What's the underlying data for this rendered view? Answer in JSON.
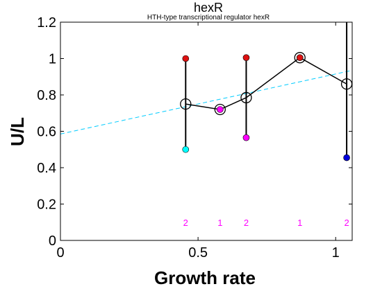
{
  "chart_data": {
    "type": "scatter",
    "title": "hexR",
    "subtitle": "HTH-type transcriptional regulator hexR",
    "xlabel": "Growth rate",
    "ylabel": "U/L",
    "xlim": [
      0,
      1.06
    ],
    "ylim": [
      0,
      1.2
    ],
    "xticks": [
      {
        "value": 0,
        "label": "0"
      },
      {
        "value": 0.5,
        "label": "0.5"
      },
      {
        "value": 1,
        "label": "1"
      }
    ],
    "yticks": [
      {
        "value": 0,
        "label": "0"
      },
      {
        "value": 0.2,
        "label": "0.2"
      },
      {
        "value": 0.4,
        "label": "0.4"
      },
      {
        "value": 0.6,
        "label": "0.6"
      },
      {
        "value": 0.8,
        "label": "0.8"
      },
      {
        "value": 1,
        "label": "1"
      },
      {
        "value": 1.2,
        "label": "1.2"
      }
    ],
    "grid": false,
    "trend_line": {
      "x": [
        0,
        1.06
      ],
      "y": [
        0.585,
        0.935
      ],
      "color": "#00ccff",
      "style": "dashed"
    },
    "mean_series": {
      "color": "#000000",
      "points": [
        {
          "x": 0.455,
          "y": 0.75
        },
        {
          "x": 0.58,
          "y": 0.72
        },
        {
          "x": 0.675,
          "y": 0.785
        },
        {
          "x": 0.87,
          "y": 1.005
        },
        {
          "x": 1.04,
          "y": 0.86
        }
      ]
    },
    "error_bars": [
      {
        "x": 0.455,
        "low": 0.5,
        "high": 1.0
      },
      {
        "x": 0.675,
        "low": 0.565,
        "high": 1.005
      },
      {
        "x": 1.04,
        "low": 0.455,
        "high": 1.2
      }
    ],
    "samples": [
      {
        "x": 0.455,
        "y": 1.0,
        "color": "#dd1111"
      },
      {
        "x": 0.455,
        "y": 0.5,
        "color": "#00ffff"
      },
      {
        "x": 0.58,
        "y": 0.72,
        "color": "#ff00ff"
      },
      {
        "x": 0.675,
        "y": 1.005,
        "color": "#dd1111"
      },
      {
        "x": 0.675,
        "y": 0.565,
        "color": "#ff00ff"
      },
      {
        "x": 0.87,
        "y": 1.005,
        "color": "#dd1111"
      },
      {
        "x": 1.04,
        "y": 0.455,
        "color": "#0000dd"
      }
    ],
    "count_labels": {
      "y": 0.1,
      "color": "#ff00ff",
      "items": [
        {
          "x": 0.455,
          "label": "2"
        },
        {
          "x": 0.58,
          "label": "1"
        },
        {
          "x": 0.675,
          "label": "2"
        },
        {
          "x": 0.87,
          "label": "1"
        },
        {
          "x": 1.04,
          "label": "2"
        }
      ]
    }
  }
}
